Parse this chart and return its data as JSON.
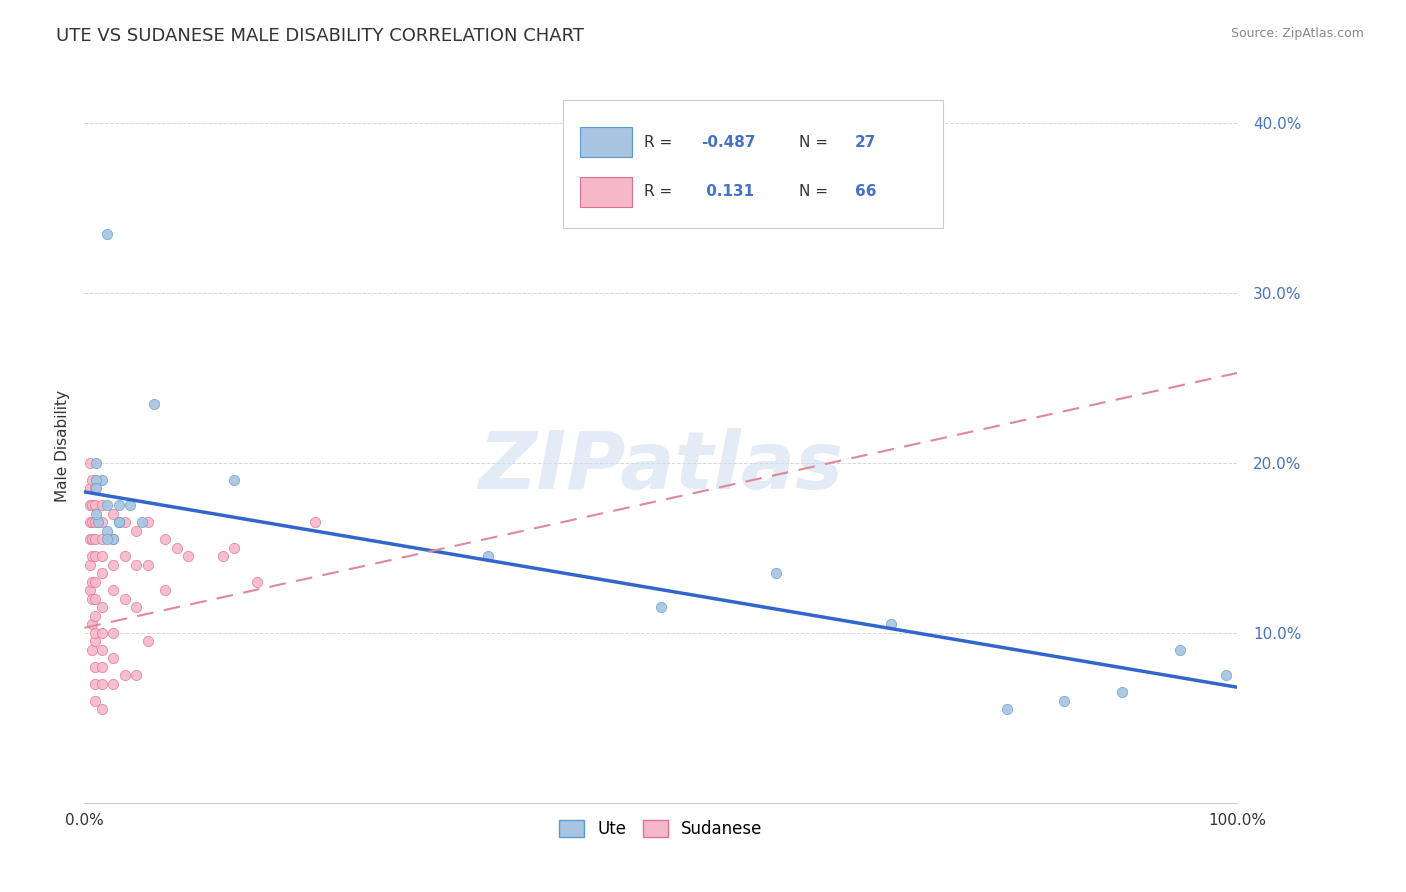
{
  "title": "UTE VS SUDANESE MALE DISABILITY CORRELATION CHART",
  "source": "Source: ZipAtlas.com",
  "ylabel": "Male Disability",
  "xlim": [
    0,
    1.0
  ],
  "ylim": [
    0,
    0.42
  ],
  "yticks": [
    0.0,
    0.1,
    0.2,
    0.3,
    0.4
  ],
  "ute_color": "#a8c4e0",
  "ute_edge_color": "#5b9bd5",
  "sudanese_color": "#f4b8c8",
  "sudanese_edge_color": "#e07090",
  "ute_line_color": "#3366cc",
  "sudanese_line_color": "#e08898",
  "background_color": "#ffffff",
  "grid_color": "#cccccc",
  "watermark": "ZIPatlas",
  "marker_size": 55,
  "ute_points_x": [
    0.02,
    0.01,
    0.015,
    0.02,
    0.03,
    0.04,
    0.025,
    0.03,
    0.01,
    0.05,
    0.02,
    0.012,
    0.03,
    0.06,
    0.01,
    0.02,
    0.13,
    0.01,
    0.35,
    0.5,
    0.6,
    0.7,
    0.8,
    0.85,
    0.9,
    0.95,
    0.99
  ],
  "ute_points_y": [
    0.335,
    0.2,
    0.19,
    0.175,
    0.165,
    0.175,
    0.155,
    0.165,
    0.19,
    0.165,
    0.16,
    0.165,
    0.175,
    0.235,
    0.185,
    0.155,
    0.19,
    0.17,
    0.145,
    0.115,
    0.135,
    0.105,
    0.055,
    0.06,
    0.065,
    0.09,
    0.075
  ],
  "sudanese_points_x": [
    0.005,
    0.005,
    0.005,
    0.005,
    0.005,
    0.005,
    0.005,
    0.007,
    0.007,
    0.007,
    0.007,
    0.007,
    0.007,
    0.007,
    0.007,
    0.007,
    0.009,
    0.009,
    0.009,
    0.009,
    0.009,
    0.009,
    0.009,
    0.009,
    0.009,
    0.009,
    0.009,
    0.009,
    0.009,
    0.015,
    0.015,
    0.015,
    0.015,
    0.015,
    0.015,
    0.015,
    0.015,
    0.015,
    0.015,
    0.015,
    0.025,
    0.025,
    0.025,
    0.025,
    0.025,
    0.025,
    0.025,
    0.035,
    0.035,
    0.035,
    0.035,
    0.045,
    0.045,
    0.045,
    0.045,
    0.055,
    0.055,
    0.055,
    0.07,
    0.07,
    0.08,
    0.09,
    0.12,
    0.13,
    0.15,
    0.2
  ],
  "sudanese_points_y": [
    0.2,
    0.185,
    0.175,
    0.165,
    0.155,
    0.14,
    0.125,
    0.19,
    0.175,
    0.165,
    0.155,
    0.145,
    0.13,
    0.12,
    0.105,
    0.09,
    0.185,
    0.175,
    0.165,
    0.155,
    0.145,
    0.13,
    0.12,
    0.11,
    0.095,
    0.08,
    0.07,
    0.1,
    0.06,
    0.175,
    0.165,
    0.155,
    0.145,
    0.135,
    0.115,
    0.1,
    0.09,
    0.08,
    0.07,
    0.055,
    0.17,
    0.155,
    0.14,
    0.125,
    0.1,
    0.085,
    0.07,
    0.165,
    0.145,
    0.12,
    0.075,
    0.16,
    0.14,
    0.115,
    0.075,
    0.165,
    0.14,
    0.095,
    0.155,
    0.125,
    0.15,
    0.145,
    0.145,
    0.15,
    0.13,
    0.165
  ],
  "ute_line_x0": 0.0,
  "ute_line_y0": 0.183,
  "ute_line_x1": 1.0,
  "ute_line_y1": 0.068,
  "sud_line_x0": 0.0,
  "sud_line_y0": 0.103,
  "sud_line_x1": 1.0,
  "sud_line_y1": 0.253
}
